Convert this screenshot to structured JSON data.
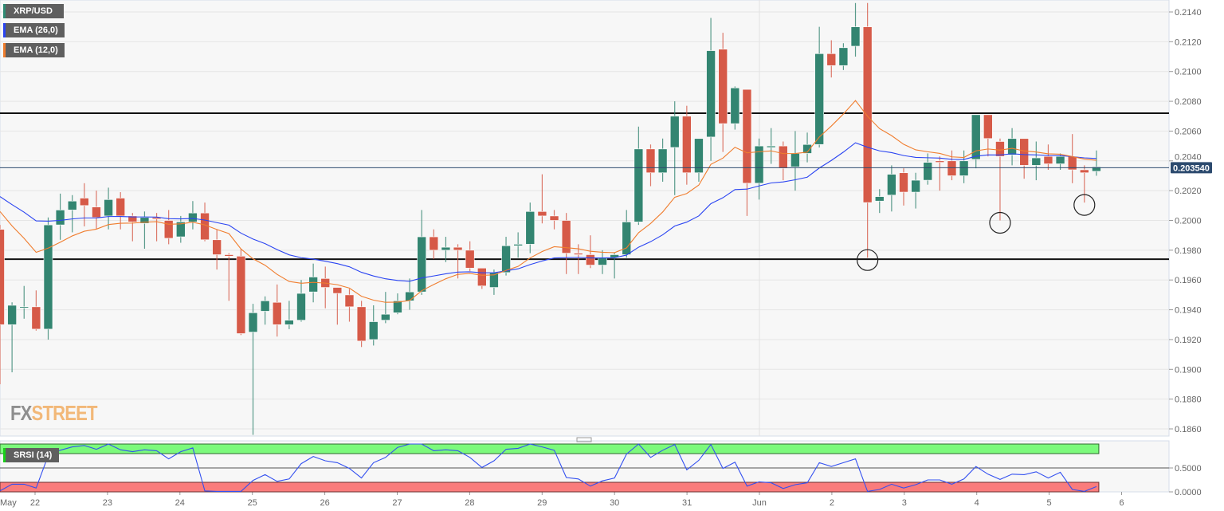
{
  "legend": {
    "symbol": "XRP/USD",
    "ema26_label": "EMA (26,0)",
    "ema12_label": "EMA (12,0)",
    "srsi_label": "SRSI (14)"
  },
  "logo": {
    "part1": "FX",
    "part2": "STREET"
  },
  "colors": {
    "bull": "#338571",
    "bear": "#d65a48",
    "ema26": "#2a44f2",
    "ema12": "#f07d2e",
    "srsi_line": "#3350f0",
    "srsi_overbought": "#7cfa7c",
    "srsi_oversold": "#fa7c7c",
    "price_tag": "#2c4a6e",
    "grid": "#e6e6e6",
    "plot_bg": "#f7f7f7"
  },
  "chart_data": [
    {
      "type": "candlestick",
      "title": "",
      "interval": "4h",
      "ylim": [
        0.1855,
        0.2148
      ],
      "yticks": [
        "0.2140",
        "0.2120",
        "0.2100",
        "0.2080",
        "0.2060",
        "0.2040",
        "0.2020",
        "0.2000",
        "0.1980",
        "0.1960",
        "0.1940",
        "0.1920",
        "0.1900",
        "0.1880",
        "0.1860"
      ],
      "xticks": [
        "May",
        "22",
        "23",
        "24",
        "25",
        "26",
        "27",
        "28",
        "29",
        "30",
        "31",
        "Jun",
        "2",
        "3",
        "4",
        "5",
        "6"
      ],
      "grid": true,
      "current_price": "0.203540",
      "horizontal_lines": [
        0.2072,
        0.1974
      ],
      "circled_candles": [
        72,
        83,
        90
      ],
      "ohlc": [
        [
          0.1994,
          0.1997,
          0.189,
          0.193
        ],
        [
          0.193,
          0.1945,
          0.1898,
          0.1943
        ],
        [
          0.1942,
          0.1956,
          0.1934,
          0.1942
        ],
        [
          0.1942,
          0.1953,
          0.1926,
          0.1927
        ],
        [
          0.1927,
          0.2002,
          0.192,
          0.1997
        ],
        [
          0.1997,
          0.2018,
          0.1987,
          0.2007
        ],
        [
          0.2007,
          0.2017,
          0.1992,
          0.2013
        ],
        [
          0.2015,
          0.2025,
          0.1996,
          0.201
        ],
        [
          0.2009,
          0.202,
          0.1994,
          0.2002
        ],
        [
          0.2003,
          0.2022,
          0.1994,
          0.2014
        ],
        [
          0.2015,
          0.2019,
          0.1994,
          0.2003
        ],
        [
          0.2003,
          0.2005,
          0.1986,
          0.1999
        ],
        [
          0.1998,
          0.2006,
          0.1981,
          0.2002
        ],
        [
          0.2002,
          0.2005,
          0.1986,
          0.2001
        ],
        [
          0.2,
          0.2007,
          0.1984,
          0.1988
        ],
        [
          0.1989,
          0.2003,
          0.1985,
          0.1999
        ],
        [
          0.1999,
          0.2013,
          0.1994,
          0.2005
        ],
        [
          0.2005,
          0.2012,
          0.1986,
          0.1987
        ],
        [
          0.1987,
          0.1994,
          0.1967,
          0.1977
        ],
        [
          0.1977,
          0.1978,
          0.1946,
          0.1976
        ],
        [
          0.1976,
          0.1981,
          0.1923,
          0.1924
        ],
        [
          0.1925,
          0.1944,
          0.1856,
          0.1938
        ],
        [
          0.1939,
          0.1949,
          0.193,
          0.1946
        ],
        [
          0.1945,
          0.1957,
          0.1922,
          0.193
        ],
        [
          0.193,
          0.1946,
          0.1927,
          0.1933
        ],
        [
          0.1933,
          0.196,
          0.1932,
          0.1951
        ],
        [
          0.1952,
          0.1971,
          0.1945,
          0.1962
        ],
        [
          0.1961,
          0.1969,
          0.1941,
          0.1955
        ],
        [
          0.1955,
          0.1955,
          0.193,
          0.1951
        ],
        [
          0.195,
          0.1954,
          0.1932,
          0.1942
        ],
        [
          0.1942,
          0.1946,
          0.1915,
          0.1919
        ],
        [
          0.192,
          0.1943,
          0.1916,
          0.1932
        ],
        [
          0.1933,
          0.1952,
          0.1931,
          0.1937
        ],
        [
          0.1938,
          0.1951,
          0.1937,
          0.1946
        ],
        [
          0.1946,
          0.1961,
          0.194,
          0.1952
        ],
        [
          0.1952,
          0.2007,
          0.195,
          0.1989
        ],
        [
          0.1989,
          0.1994,
          0.1974,
          0.198
        ],
        [
          0.198,
          0.1989,
          0.1972,
          0.1982
        ],
        [
          0.1982,
          0.1984,
          0.1961,
          0.198
        ],
        [
          0.198,
          0.1986,
          0.1966,
          0.1968
        ],
        [
          0.1968,
          0.1968,
          0.1954,
          0.1956
        ],
        [
          0.1955,
          0.1967,
          0.195,
          0.1965
        ],
        [
          0.1965,
          0.1989,
          0.1963,
          0.1983
        ],
        [
          0.1983,
          0.1992,
          0.1975,
          0.1984
        ],
        [
          0.1984,
          0.2012,
          0.1978,
          0.2006
        ],
        [
          0.2006,
          0.2031,
          0.1998,
          0.2003
        ],
        [
          0.2003,
          0.2007,
          0.1994,
          0.2
        ],
        [
          0.2,
          0.2005,
          0.1964,
          0.1978
        ],
        [
          0.1978,
          0.1984,
          0.1964,
          0.1977
        ],
        [
          0.1977,
          0.199,
          0.1968,
          0.197
        ],
        [
          0.197,
          0.198,
          0.1964,
          0.1975
        ],
        [
          0.1975,
          0.1978,
          0.1961,
          0.1977
        ],
        [
          0.1977,
          0.2007,
          0.1975,
          0.1999
        ],
        [
          0.1999,
          0.2063,
          0.1997,
          0.2048
        ],
        [
          0.2048,
          0.2051,
          0.2023,
          0.2032
        ],
        [
          0.2032,
          0.2055,
          0.2026,
          0.2048
        ],
        [
          0.2049,
          0.208,
          0.2017,
          0.207
        ],
        [
          0.207,
          0.2077,
          0.2024,
          0.2032
        ],
        [
          0.2032,
          0.2055,
          0.2026,
          0.2055
        ],
        [
          0.2056,
          0.2136,
          0.204,
          0.2114
        ],
        [
          0.2115,
          0.2126,
          0.2046,
          0.2065
        ],
        [
          0.2065,
          0.209,
          0.2061,
          0.2089
        ],
        [
          0.2088,
          0.2088,
          0.2003,
          0.2025
        ],
        [
          0.2025,
          0.2055,
          0.2014,
          0.205
        ],
        [
          0.2049,
          0.2062,
          0.2038,
          0.205
        ],
        [
          0.205,
          0.2053,
          0.2027,
          0.2035
        ],
        [
          0.2036,
          0.206,
          0.202,
          0.2045
        ],
        [
          0.2045,
          0.2059,
          0.2039,
          0.2051
        ],
        [
          0.2051,
          0.213,
          0.2049,
          0.2112
        ],
        [
          0.2112,
          0.2121,
          0.2096,
          0.2104
        ],
        [
          0.2104,
          0.2119,
          0.2101,
          0.2116
        ],
        [
          0.2117,
          0.2146,
          0.211,
          0.213
        ],
        [
          0.213,
          0.2146,
          0.1975,
          0.2012
        ],
        [
          0.2013,
          0.2021,
          0.2005,
          0.2016
        ],
        [
          0.2017,
          0.2037,
          0.2006,
          0.2031
        ],
        [
          0.2032,
          0.2035,
          0.201,
          0.2019
        ],
        [
          0.2019,
          0.2032,
          0.2008,
          0.2027
        ],
        [
          0.2027,
          0.2045,
          0.2024,
          0.2039
        ],
        [
          0.204,
          0.2043,
          0.202,
          0.2039
        ],
        [
          0.204,
          0.2047,
          0.2027,
          0.203
        ],
        [
          0.203,
          0.2047,
          0.2025,
          0.204
        ],
        [
          0.2041,
          0.2071,
          0.2035,
          0.2071
        ],
        [
          0.2071,
          0.2071,
          0.2043,
          0.2055
        ],
        [
          0.2053,
          0.2055,
          0.2,
          0.2043
        ],
        [
          0.2044,
          0.2062,
          0.2037,
          0.2055
        ],
        [
          0.2055,
          0.2055,
          0.2028,
          0.2037
        ],
        [
          0.2037,
          0.2053,
          0.2027,
          0.2042
        ],
        [
          0.2043,
          0.2051,
          0.2034,
          0.2038
        ],
        [
          0.2038,
          0.2045,
          0.2034,
          0.2043
        ],
        [
          0.2043,
          0.2058,
          0.2025,
          0.2034
        ],
        [
          0.2034,
          0.2037,
          0.2012,
          0.2032
        ],
        [
          0.2033,
          0.2047,
          0.203,
          0.2036
        ]
      ],
      "ema": [
        {
          "name": "EMA (26,0)",
          "period": 26,
          "start": 0.2016
        },
        {
          "name": "EMA (12,0)",
          "period": 12,
          "start": 0.2006
        }
      ]
    },
    {
      "type": "line",
      "title": "SRSI (14)",
      "ylim": [
        0,
        1
      ],
      "yticks": [
        "0.5000",
        "0.0000"
      ],
      "overbought_band": [
        0.8,
        1.0
      ],
      "oversold_band": [
        0.0,
        0.2
      ],
      "values": [
        0.02,
        0.16,
        0.16,
        0.08,
        0.76,
        0.87,
        0.94,
        0.97,
        0.89,
        1.0,
        0.88,
        0.84,
        0.88,
        0.86,
        0.69,
        0.84,
        0.92,
        0.02,
        0.01,
        0.01,
        0.01,
        0.24,
        0.36,
        0.22,
        0.27,
        0.59,
        0.74,
        0.65,
        0.61,
        0.49,
        0.29,
        0.61,
        0.72,
        0.93,
        1.0,
        1.0,
        0.86,
        0.88,
        0.86,
        0.72,
        0.51,
        0.65,
        0.89,
        0.91,
        1.0,
        0.94,
        0.87,
        0.3,
        0.27,
        0.12,
        0.23,
        0.29,
        0.79,
        1.0,
        0.72,
        0.87,
        0.99,
        0.46,
        0.66,
        0.99,
        0.49,
        0.62,
        0.12,
        0.21,
        0.19,
        0.07,
        0.15,
        0.19,
        0.61,
        0.53,
        0.61,
        0.69,
        0.01,
        0.05,
        0.16,
        0.08,
        0.15,
        0.25,
        0.25,
        0.16,
        0.27,
        0.53,
        0.37,
        0.26,
        0.37,
        0.36,
        0.42,
        0.29,
        0.41,
        0.05,
        0.01,
        0.11
      ]
    }
  ]
}
